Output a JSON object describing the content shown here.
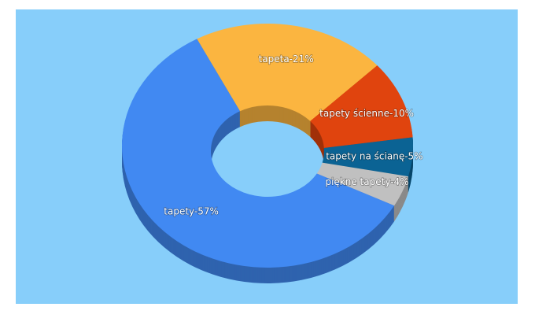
{
  "chart_data": {
    "type": "pie",
    "donut": true,
    "values": [
      21,
      10,
      5,
      4,
      57
    ],
    "value_labels": [
      "tapeta-21%",
      "tapety ścienne-10%",
      "tapety na ścianę-5%",
      "piękne tapety-4%",
      "tapety-57%"
    ],
    "colors": [
      "#fbb540",
      "#e0440e",
      "#0b6394",
      "#c0c0c0",
      "#4189f2"
    ],
    "background": "#87cefa"
  }
}
